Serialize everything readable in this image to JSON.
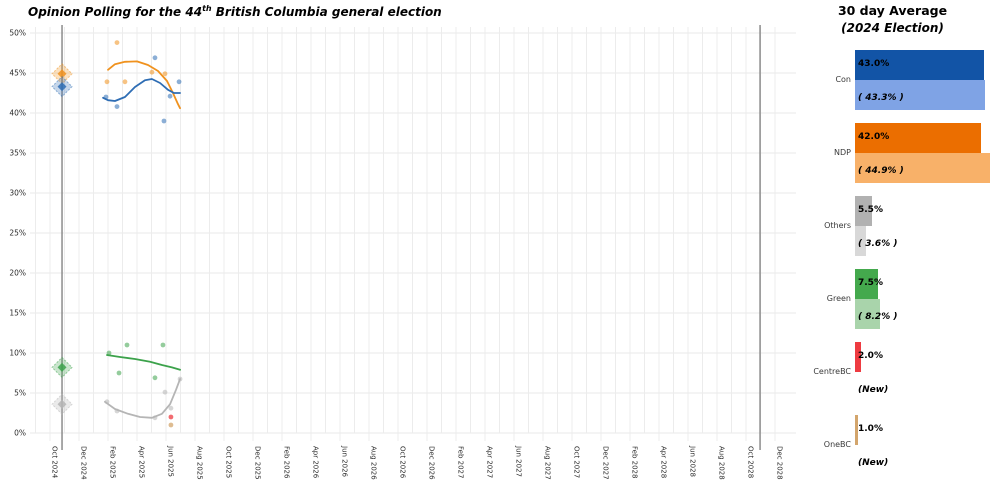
{
  "title": {
    "prefix": "Opinion Polling for the 44",
    "superscript": "th",
    "suffix": " British Columbia general election"
  },
  "legend": {
    "title": "30 day Average",
    "subtitle": "(2024 Election)",
    "rows": [
      {
        "party": "Con",
        "avg": 43.0,
        "avg_label": "43.0%",
        "avg_color": "#1254A6",
        "prev": 43.3,
        "prev_label": "( 43.3% )",
        "prev_color": "#7FA3E5",
        "is_new": false
      },
      {
        "party": "NDP",
        "avg": 42.0,
        "avg_label": "42.0%",
        "avg_color": "#EB6E00",
        "prev": 44.9,
        "prev_label": "( 44.9% )",
        "prev_color": "#F8B169",
        "is_new": false
      },
      {
        "party": "Others",
        "avg": 5.5,
        "avg_label": "5.5%",
        "avg_color": "#B1B1B1",
        "prev": 3.6,
        "prev_label": "( 3.6% )",
        "prev_color": "#D8D8D8",
        "is_new": false
      },
      {
        "party": "Green",
        "avg": 7.5,
        "avg_label": "7.5%",
        "avg_color": "#44A94D",
        "prev": 8.2,
        "prev_label": "( 8.2% )",
        "prev_color": "#A9D4AB",
        "is_new": false
      },
      {
        "party": "CentreBC",
        "avg": 2.0,
        "avg_label": "2.0%",
        "avg_color": "#EE3B41",
        "prev": null,
        "prev_label": "(New)",
        "prev_color": null,
        "is_new": true
      },
      {
        "party": "OneBC",
        "avg": 1.0,
        "avg_label": "1.0%",
        "avg_color": "#D3A56C",
        "prev": null,
        "prev_label": "(New)",
        "prev_color": null,
        "is_new": true
      }
    ]
  },
  "chart_data": {
    "type": "scatter",
    "title": "Opinion Polling for the 44th British Columbia general election",
    "xlabel": "",
    "ylabel": "",
    "ylim": [
      0,
      50
    ],
    "grid": true,
    "y_tick_labels": [
      "0%",
      "5%",
      "10%",
      "15%",
      "20%",
      "25%",
      "30%",
      "35%",
      "40%",
      "45%",
      "50%"
    ],
    "y_tick_values": [
      0,
      5,
      10,
      15,
      20,
      25,
      30,
      35,
      40,
      45,
      50
    ],
    "x_tick_labels": [
      "Oct 2024",
      "Dec 2024",
      "Feb 2025",
      "Apr 2025",
      "Jun 2025",
      "Aug 2025",
      "Oct 2025",
      "Dec 2025",
      "Feb 2026",
      "Apr 2026",
      "Jun 2026",
      "Aug 2026",
      "Oct 2026",
      "Dec 2026",
      "Feb 2027",
      "Apr 2027",
      "Jun 2027",
      "Aug 2027",
      "Oct 2027",
      "Dec 2027",
      "Feb 2028",
      "Apr 2028",
      "Jun 2028",
      "Aug 2028",
      "Oct 2028",
      "Dec 2028"
    ],
    "x_tick_spacing_months": 2,
    "election_lines_months": [
      0.83,
      48.97
    ],
    "election_line_color": "#8C8C8C",
    "series": [
      {
        "name": "Others",
        "color": "#B5B5B5",
        "election_2024": 3.6,
        "points": [
          [
            3.93,
            3.9
          ],
          [
            4.62,
            2.75
          ],
          [
            7.24,
            1.9
          ],
          [
            7.93,
            5.1
          ],
          [
            8.34,
            3.1
          ],
          [
            8.97,
            6.75
          ]
        ],
        "trend": [
          [
            3.79,
            3.9
          ],
          [
            4.48,
            3.0
          ],
          [
            5.38,
            2.4
          ],
          [
            6.21,
            2.0
          ],
          [
            7.03,
            1.9
          ],
          [
            7.72,
            2.4
          ],
          [
            8.28,
            3.6
          ],
          [
            8.69,
            5.4
          ],
          [
            8.97,
            6.75
          ]
        ]
      },
      {
        "name": "Green",
        "color": "#3CA24B",
        "election_2024": 8.2,
        "points": [
          [
            4.07,
            10.0
          ],
          [
            4.76,
            7.5
          ],
          [
            5.31,
            11.0
          ],
          [
            7.24,
            6.9
          ],
          [
            7.79,
            11.0
          ]
        ],
        "trend": [
          [
            3.93,
            9.75
          ],
          [
            4.83,
            9.5
          ],
          [
            5.86,
            9.25
          ],
          [
            6.9,
            8.9
          ],
          [
            7.72,
            8.5
          ],
          [
            8.41,
            8.2
          ],
          [
            8.97,
            7.9
          ]
        ]
      },
      {
        "name": "NDP",
        "color": "#F0921E",
        "election_2024": 44.9,
        "points": [
          [
            3.93,
            43.9
          ],
          [
            4.62,
            48.8
          ],
          [
            5.17,
            43.9
          ],
          [
            7.03,
            45.1
          ],
          [
            7.93,
            44.9
          ]
        ],
        "trend": [
          [
            4.0,
            45.4
          ],
          [
            4.48,
            46.1
          ],
          [
            5.17,
            46.4
          ],
          [
            6.0,
            46.45
          ],
          [
            6.76,
            46.0
          ],
          [
            7.45,
            45.25
          ],
          [
            8.07,
            44.0
          ],
          [
            8.48,
            42.5
          ],
          [
            8.83,
            41.1
          ],
          [
            8.97,
            40.6
          ]
        ]
      },
      {
        "name": "Con",
        "color": "#2E6DB4",
        "election_2024": 43.3,
        "points": [
          [
            3.86,
            42.0
          ],
          [
            4.62,
            40.8
          ],
          [
            7.24,
            46.9
          ],
          [
            7.86,
            39.0
          ],
          [
            8.28,
            42.1
          ],
          [
            8.9,
            43.9
          ]
        ],
        "trend": [
          [
            3.66,
            41.9
          ],
          [
            4.0,
            41.6
          ],
          [
            4.48,
            41.5
          ],
          [
            5.17,
            42.0
          ],
          [
            5.86,
            43.25
          ],
          [
            6.55,
            44.1
          ],
          [
            7.03,
            44.25
          ],
          [
            7.59,
            43.75
          ],
          [
            8.14,
            42.9
          ],
          [
            8.55,
            42.5
          ],
          [
            8.97,
            42.5
          ]
        ]
      }
    ],
    "single_polls": [
      {
        "name": "CentreBC",
        "color": "#EE3B41",
        "point": [
          8.34,
          2.0
        ]
      },
      {
        "name": "OneBC",
        "color": "#D3A56C",
        "point": [
          8.34,
          1.0
        ]
      }
    ]
  }
}
